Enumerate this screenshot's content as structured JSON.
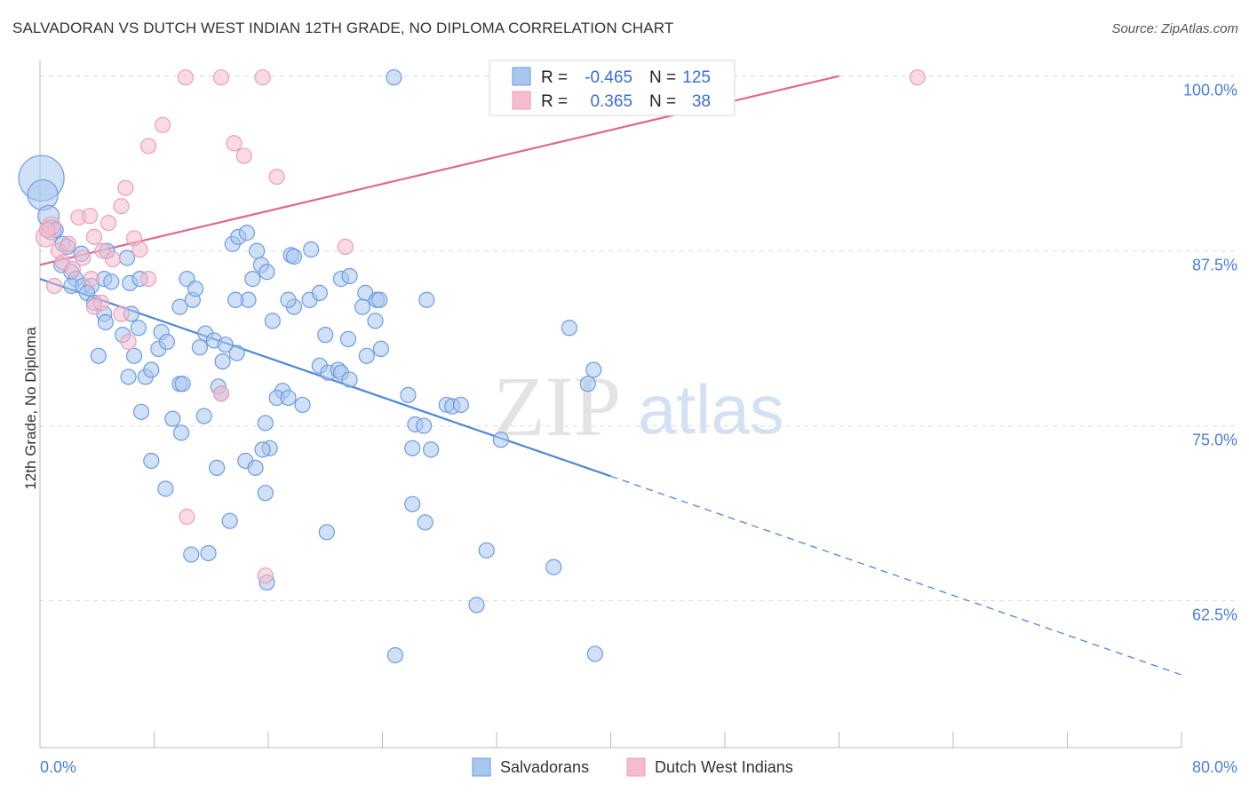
{
  "title": "SALVADORAN VS DUTCH WEST INDIAN 12TH GRADE, NO DIPLOMA CORRELATION CHART",
  "source": "Source: ZipAtlas.com",
  "watermark": {
    "zip": "ZIP",
    "atlas": "atlas"
  },
  "colors": {
    "blue": "#4f86d8",
    "blue_fill": "#a9c6ef",
    "pink": "#e06890",
    "pink_fill": "#f5bccd",
    "grid": "#dddddd"
  },
  "legend": {
    "rows": [
      {
        "r_label": "R =",
        "r_value": "-0.465",
        "n_label": "N =",
        "n_value": "125"
      },
      {
        "r_label": "R =",
        "r_value": "0.365",
        "n_label": "N =",
        "n_value": "38"
      }
    ]
  },
  "chart_data": {
    "type": "scatter",
    "xlabel": "",
    "ylabel": "12th Grade, No Diploma",
    "xlim": [
      0,
      80
    ],
    "ylim": [
      52.0,
      101.5
    ],
    "x_tick_labels": [
      "0.0%",
      "80.0%"
    ],
    "y_ticks": [
      62.5,
      75.0,
      87.5,
      100.0
    ],
    "y_tick_labels": [
      "62.5%",
      "75.0%",
      "87.5%",
      "100.0%"
    ],
    "grid": true,
    "legend_position": "bottom",
    "series": [
      {
        "name": "Salvadorans",
        "color": "#4f86d8",
        "trend": {
          "x0": 0,
          "y0": 85.5,
          "x1": 40,
          "y1": 71.4,
          "dashed_to_x": 80,
          "dashed_to_y": 57.2
        },
        "points": [
          [
            0.1,
            92.7,
            3
          ],
          [
            0.2,
            91.5,
            2
          ],
          [
            0.6,
            90.0,
            1.4
          ],
          [
            0.8,
            89.0,
            1.3
          ],
          [
            1.1,
            89.0,
            1
          ],
          [
            1.6,
            88.0,
            1
          ],
          [
            1.9,
            87.8,
            1
          ],
          [
            1.5,
            86.5,
            1
          ],
          [
            2.2,
            86.0,
            1
          ],
          [
            2.5,
            85.5,
            1
          ],
          [
            2.2,
            85.0,
            1
          ],
          [
            3.0,
            85.0,
            1
          ],
          [
            3.6,
            85.0,
            1
          ],
          [
            4.5,
            85.5,
            1
          ],
          [
            5.0,
            85.3,
            1
          ],
          [
            6.1,
            87.0,
            1
          ],
          [
            3.3,
            84.5,
            1
          ],
          [
            3.8,
            83.8,
            1
          ],
          [
            6.3,
            85.2,
            1
          ],
          [
            7.0,
            85.5,
            1
          ],
          [
            4.5,
            83.0,
            1
          ],
          [
            4.6,
            82.4,
            1
          ],
          [
            6.4,
            83.0,
            1
          ],
          [
            6.9,
            82.0,
            1
          ],
          [
            5.8,
            81.5,
            1
          ],
          [
            6.6,
            80.0,
            1
          ],
          [
            4.1,
            80.0,
            1
          ],
          [
            8.5,
            81.7,
            1
          ],
          [
            8.3,
            80.5,
            1
          ],
          [
            8.9,
            81.0,
            1
          ],
          [
            6.2,
            78.5,
            1
          ],
          [
            7.4,
            78.5,
            1
          ],
          [
            7.8,
            79.0,
            1
          ],
          [
            9.8,
            78.0,
            1
          ],
          [
            10.0,
            78.0,
            1
          ],
          [
            10.3,
            85.5,
            1
          ],
          [
            10.7,
            84.0,
            1
          ],
          [
            10.9,
            84.8,
            1
          ],
          [
            9.8,
            83.5,
            1
          ],
          [
            11.6,
            81.6,
            1
          ],
          [
            11.2,
            80.6,
            1
          ],
          [
            12.2,
            81.1,
            1
          ],
          [
            13.0,
            80.8,
            1
          ],
          [
            13.8,
            80.2,
            1
          ],
          [
            12.8,
            79.6,
            1
          ],
          [
            12.5,
            77.8,
            1
          ],
          [
            7.1,
            76.0,
            1
          ],
          [
            9.3,
            75.5,
            1
          ],
          [
            9.9,
            74.5,
            1
          ],
          [
            11.5,
            75.7,
            1
          ],
          [
            12.4,
            72.0,
            1
          ],
          [
            7.8,
            72.5,
            1
          ],
          [
            8.8,
            70.5,
            1
          ],
          [
            14.4,
            72.5,
            1
          ],
          [
            15.1,
            72.0,
            1
          ],
          [
            12.7,
            77.3,
            1
          ],
          [
            13.5,
            88.0,
            1
          ],
          [
            13.9,
            88.5,
            1
          ],
          [
            14.5,
            88.8,
            1
          ],
          [
            15.2,
            87.5,
            1
          ],
          [
            15.5,
            86.5,
            1
          ],
          [
            15.9,
            86.0,
            1
          ],
          [
            14.9,
            85.5,
            1
          ],
          [
            14.6,
            84.0,
            1
          ],
          [
            13.7,
            84.0,
            1
          ],
          [
            16.3,
            82.5,
            1
          ],
          [
            17.8,
            83.5,
            1
          ],
          [
            17.4,
            84.0,
            1
          ],
          [
            18.9,
            84.0,
            1
          ],
          [
            19.6,
            84.5,
            1
          ],
          [
            17.6,
            87.2,
            1
          ],
          [
            17.8,
            87.1,
            1
          ],
          [
            19.0,
            87.6,
            1
          ],
          [
            21.1,
            85.5,
            1
          ],
          [
            21.7,
            85.7,
            1
          ],
          [
            22.8,
            84.5,
            1
          ],
          [
            23.6,
            84.0,
            1
          ],
          [
            23.8,
            84.0,
            1
          ],
          [
            22.6,
            83.5,
            1
          ],
          [
            23.5,
            82.5,
            1
          ],
          [
            20.0,
            81.5,
            1
          ],
          [
            21.6,
            81.2,
            1
          ],
          [
            23.9,
            80.5,
            1
          ],
          [
            22.9,
            80.0,
            1
          ],
          [
            19.6,
            79.3,
            1
          ],
          [
            20.2,
            78.8,
            1
          ],
          [
            20.9,
            79.0,
            1
          ],
          [
            21.1,
            78.8,
            1
          ],
          [
            21.7,
            78.3,
            1
          ],
          [
            17.0,
            77.5,
            1
          ],
          [
            16.6,
            77.0,
            1
          ],
          [
            17.4,
            77.0,
            1
          ],
          [
            18.4,
            76.5,
            1
          ],
          [
            15.8,
            75.2,
            1
          ],
          [
            16.1,
            73.4,
            1
          ],
          [
            15.6,
            73.3,
            1
          ],
          [
            15.8,
            70.2,
            1
          ],
          [
            13.3,
            68.2,
            1
          ],
          [
            10.6,
            65.8,
            1
          ],
          [
            11.8,
            65.9,
            1
          ],
          [
            15.9,
            63.8,
            1
          ],
          [
            20.1,
            67.4,
            1
          ],
          [
            27.1,
            84.0,
            1
          ],
          [
            25.8,
            77.2,
            1
          ],
          [
            26.3,
            75.1,
            1
          ],
          [
            26.9,
            75.0,
            1
          ],
          [
            28.5,
            76.5,
            1
          ],
          [
            28.9,
            76.4,
            1
          ],
          [
            29.5,
            76.5,
            1
          ],
          [
            27.4,
            73.3,
            1
          ],
          [
            26.1,
            73.4,
            1
          ],
          [
            26.1,
            69.4,
            1
          ],
          [
            27.0,
            68.1,
            1
          ],
          [
            24.8,
            99.9,
            1
          ],
          [
            31.3,
            66.1,
            1
          ],
          [
            30.6,
            62.2,
            1
          ],
          [
            24.9,
            58.6,
            1
          ],
          [
            37.1,
            82.0,
            1
          ],
          [
            32.3,
            74.0,
            1
          ],
          [
            38.4,
            78.0,
            1
          ],
          [
            38.8,
            79.0,
            1
          ],
          [
            36.0,
            64.9,
            1
          ],
          [
            38.9,
            58.7,
            1
          ],
          [
            4.7,
            87.5,
            1
          ],
          [
            2.9,
            87.3,
            1
          ]
        ]
      },
      {
        "name": "Dutch West Indians",
        "color": "#e06890",
        "trend": {
          "x0": 0,
          "y0": 86.5,
          "x1": 56,
          "y1": 100.0
        },
        "points": [
          [
            0.4,
            88.5,
            1.3
          ],
          [
            0.8,
            89.3,
            1.2
          ],
          [
            1.3,
            87.5,
            1
          ],
          [
            1.6,
            86.7,
            1
          ],
          [
            2.7,
            89.9,
            1
          ],
          [
            3.5,
            90.0,
            1
          ],
          [
            3.8,
            88.5,
            1
          ],
          [
            4.4,
            87.5,
            1
          ],
          [
            4.8,
            89.5,
            1
          ],
          [
            5.1,
            86.9,
            1
          ],
          [
            5.7,
            90.7,
            1
          ],
          [
            6.0,
            92.0,
            1
          ],
          [
            6.6,
            88.4,
            1
          ],
          [
            7.0,
            87.6,
            1
          ],
          [
            7.6,
            85.5,
            1
          ],
          [
            7.6,
            95.0,
            1
          ],
          [
            8.6,
            96.5,
            1
          ],
          [
            10.2,
            99.9,
            1
          ],
          [
            12.7,
            99.9,
            1
          ],
          [
            15.6,
            99.9,
            1
          ],
          [
            13.6,
            95.2,
            1
          ],
          [
            14.3,
            94.3,
            1
          ],
          [
            16.6,
            92.8,
            1
          ],
          [
            21.4,
            87.8,
            1
          ],
          [
            61.5,
            99.9,
            1
          ],
          [
            3.6,
            85.5,
            1
          ],
          [
            3.8,
            83.5,
            1
          ],
          [
            4.3,
            83.8,
            1
          ],
          [
            5.7,
            83.0,
            1
          ],
          [
            6.2,
            81.0,
            1
          ],
          [
            12.7,
            77.3,
            1
          ],
          [
            10.3,
            68.5,
            1
          ],
          [
            15.8,
            64.3,
            1
          ],
          [
            2.3,
            86.2,
            1
          ],
          [
            1.0,
            85.0,
            1
          ],
          [
            2.0,
            88.0,
            1
          ],
          [
            0.5,
            89.0,
            1
          ],
          [
            3.0,
            87.0,
            1
          ]
        ]
      }
    ]
  },
  "bottom_legend": [
    "Salvadorans",
    "Dutch West Indians"
  ]
}
